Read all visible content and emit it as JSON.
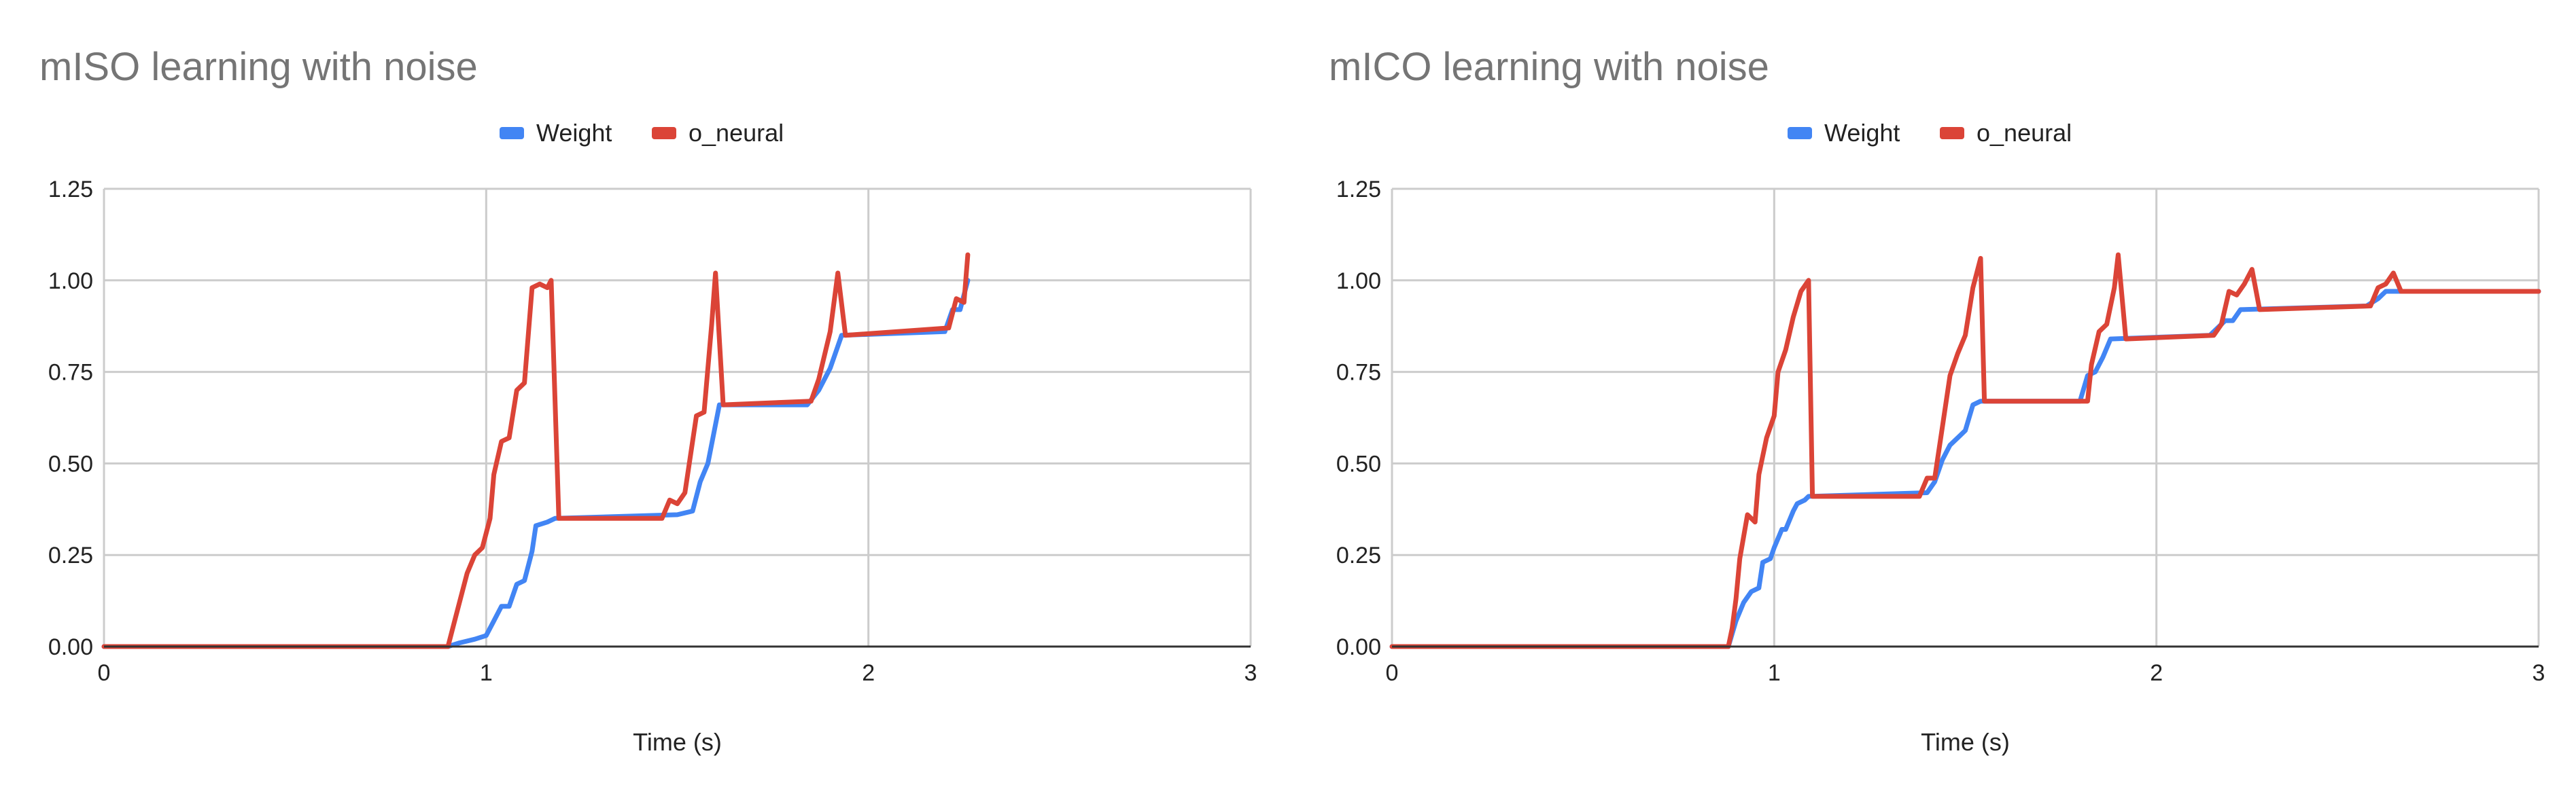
{
  "colors": {
    "weight": "#4285f4",
    "o_neural": "#db4437",
    "title": "#757575"
  },
  "chart_data": [
    {
      "type": "line",
      "title": "mISO learning with noise",
      "xlabel": "Time (s)",
      "ylabel": "",
      "xlim": [
        0,
        3
      ],
      "ylim": [
        0,
        1.25
      ],
      "x_ticks": [
        {
          "value": 0,
          "label": "0"
        },
        {
          "value": 1,
          "label": "1"
        },
        {
          "value": 2,
          "label": "2"
        },
        {
          "value": 3,
          "label": "3"
        }
      ],
      "y_ticks": [
        {
          "value": 0,
          "label": "0.00"
        },
        {
          "value": 0.25,
          "label": "0.25"
        },
        {
          "value": 0.5,
          "label": "0.50"
        },
        {
          "value": 0.75,
          "label": "0.75"
        },
        {
          "value": 1.0,
          "label": "1.00"
        },
        {
          "value": 1.25,
          "label": "1.25"
        }
      ],
      "grid": true,
      "legend": "top-center",
      "series": [
        {
          "name": "Weight",
          "color": "#4285f4",
          "points": [
            [
              0,
              0
            ],
            [
              0.9,
              0
            ],
            [
              0.93,
              0.01
            ],
            [
              0.97,
              0.02
            ],
            [
              1.0,
              0.03
            ],
            [
              1.02,
              0.07
            ],
            [
              1.04,
              0.11
            ],
            [
              1.06,
              0.11
            ],
            [
              1.08,
              0.17
            ],
            [
              1.1,
              0.18
            ],
            [
              1.12,
              0.26
            ],
            [
              1.13,
              0.33
            ],
            [
              1.16,
              0.34
            ],
            [
              1.18,
              0.35
            ],
            [
              1.5,
              0.36
            ],
            [
              1.54,
              0.37
            ],
            [
              1.56,
              0.45
            ],
            [
              1.58,
              0.5
            ],
            [
              1.61,
              0.66
            ],
            [
              1.84,
              0.66
            ],
            [
              1.87,
              0.7
            ],
            [
              1.9,
              0.76
            ],
            [
              1.93,
              0.85
            ],
            [
              2.2,
              0.86
            ],
            [
              2.22,
              0.92
            ],
            [
              2.24,
              0.92
            ],
            [
              2.26,
              1.0
            ]
          ]
        },
        {
          "name": "o_neural",
          "color": "#db4437",
          "points": [
            [
              0,
              0
            ],
            [
              0.9,
              0
            ],
            [
              0.92,
              0.08
            ],
            [
              0.95,
              0.2
            ],
            [
              0.97,
              0.25
            ],
            [
              0.99,
              0.27
            ],
            [
              1.01,
              0.35
            ],
            [
              1.02,
              0.47
            ],
            [
              1.04,
              0.56
            ],
            [
              1.06,
              0.57
            ],
            [
              1.08,
              0.7
            ],
            [
              1.1,
              0.72
            ],
            [
              1.11,
              0.85
            ],
            [
              1.12,
              0.98
            ],
            [
              1.14,
              0.99
            ],
            [
              1.16,
              0.98
            ],
            [
              1.17,
              1.0
            ],
            [
              1.19,
              0.35
            ],
            [
              1.46,
              0.35
            ],
            [
              1.48,
              0.4
            ],
            [
              1.5,
              0.39
            ],
            [
              1.52,
              0.42
            ],
            [
              1.55,
              0.63
            ],
            [
              1.57,
              0.64
            ],
            [
              1.59,
              0.88
            ],
            [
              1.6,
              1.02
            ],
            [
              1.62,
              0.66
            ],
            [
              1.85,
              0.67
            ],
            [
              1.87,
              0.73
            ],
            [
              1.9,
              0.86
            ],
            [
              1.92,
              1.02
            ],
            [
              1.94,
              0.85
            ],
            [
              2.21,
              0.87
            ],
            [
              2.23,
              0.95
            ],
            [
              2.25,
              0.94
            ],
            [
              2.26,
              1.07
            ]
          ]
        }
      ]
    },
    {
      "type": "line",
      "title": "mICO learning with noise",
      "xlabel": "Time (s)",
      "ylabel": "",
      "xlim": [
        0,
        3
      ],
      "ylim": [
        0,
        1.25
      ],
      "x_ticks": [
        {
          "value": 0,
          "label": "0"
        },
        {
          "value": 1,
          "label": "1"
        },
        {
          "value": 2,
          "label": "2"
        },
        {
          "value": 3,
          "label": "3"
        }
      ],
      "y_ticks": [
        {
          "value": 0,
          "label": "0.00"
        },
        {
          "value": 0.25,
          "label": "0.25"
        },
        {
          "value": 0.5,
          "label": "0.50"
        },
        {
          "value": 0.75,
          "label": "0.75"
        },
        {
          "value": 1.0,
          "label": "1.00"
        },
        {
          "value": 1.25,
          "label": "1.25"
        }
      ],
      "grid": true,
      "legend": "top-center",
      "series": [
        {
          "name": "Weight",
          "color": "#4285f4",
          "points": [
            [
              0,
              0
            ],
            [
              0.88,
              0
            ],
            [
              0.9,
              0.07
            ],
            [
              0.92,
              0.12
            ],
            [
              0.94,
              0.15
            ],
            [
              0.96,
              0.16
            ],
            [
              0.97,
              0.23
            ],
            [
              0.99,
              0.24
            ],
            [
              1.0,
              0.27
            ],
            [
              1.02,
              0.32
            ],
            [
              1.03,
              0.32
            ],
            [
              1.05,
              0.37
            ],
            [
              1.06,
              0.39
            ],
            [
              1.08,
              0.4
            ],
            [
              1.09,
              0.41
            ],
            [
              1.4,
              0.42
            ],
            [
              1.42,
              0.45
            ],
            [
              1.44,
              0.51
            ],
            [
              1.46,
              0.55
            ],
            [
              1.48,
              0.57
            ],
            [
              1.5,
              0.59
            ],
            [
              1.52,
              0.66
            ],
            [
              1.54,
              0.67
            ],
            [
              1.8,
              0.67
            ],
            [
              1.82,
              0.74
            ],
            [
              1.84,
              0.75
            ],
            [
              1.86,
              0.79
            ],
            [
              1.88,
              0.84
            ],
            [
              2.14,
              0.85
            ],
            [
              2.16,
              0.87
            ],
            [
              2.18,
              0.89
            ],
            [
              2.2,
              0.89
            ],
            [
              2.22,
              0.92
            ],
            [
              2.55,
              0.93
            ],
            [
              2.58,
              0.95
            ],
            [
              2.6,
              0.97
            ],
            [
              3.0,
              0.97
            ]
          ]
        },
        {
          "name": "o_neural",
          "color": "#db4437",
          "points": [
            [
              0,
              0
            ],
            [
              0.88,
              0
            ],
            [
              0.89,
              0.05
            ],
            [
              0.9,
              0.13
            ],
            [
              0.91,
              0.24
            ],
            [
              0.93,
              0.36
            ],
            [
              0.95,
              0.34
            ],
            [
              0.96,
              0.47
            ],
            [
              0.98,
              0.57
            ],
            [
              1.0,
              0.63
            ],
            [
              1.01,
              0.75
            ],
            [
              1.03,
              0.81
            ],
            [
              1.05,
              0.9
            ],
            [
              1.07,
              0.97
            ],
            [
              1.09,
              1.0
            ],
            [
              1.1,
              0.41
            ],
            [
              1.38,
              0.41
            ],
            [
              1.4,
              0.46
            ],
            [
              1.42,
              0.46
            ],
            [
              1.44,
              0.6
            ],
            [
              1.46,
              0.74
            ],
            [
              1.48,
              0.8
            ],
            [
              1.5,
              0.85
            ],
            [
              1.52,
              0.98
            ],
            [
              1.54,
              1.06
            ],
            [
              1.55,
              0.67
            ],
            [
              1.82,
              0.67
            ],
            [
              1.83,
              0.77
            ],
            [
              1.85,
              0.86
            ],
            [
              1.87,
              0.88
            ],
            [
              1.89,
              0.98
            ],
            [
              1.9,
              1.07
            ],
            [
              1.92,
              0.84
            ],
            [
              2.15,
              0.85
            ],
            [
              2.17,
              0.88
            ],
            [
              2.19,
              0.97
            ],
            [
              2.21,
              0.96
            ],
            [
              2.23,
              0.99
            ],
            [
              2.25,
              1.03
            ],
            [
              2.27,
              0.92
            ],
            [
              2.56,
              0.93
            ],
            [
              2.58,
              0.98
            ],
            [
              2.6,
              0.99
            ],
            [
              2.62,
              1.02
            ],
            [
              2.64,
              0.97
            ],
            [
              3.0,
              0.97
            ]
          ]
        }
      ]
    }
  ]
}
